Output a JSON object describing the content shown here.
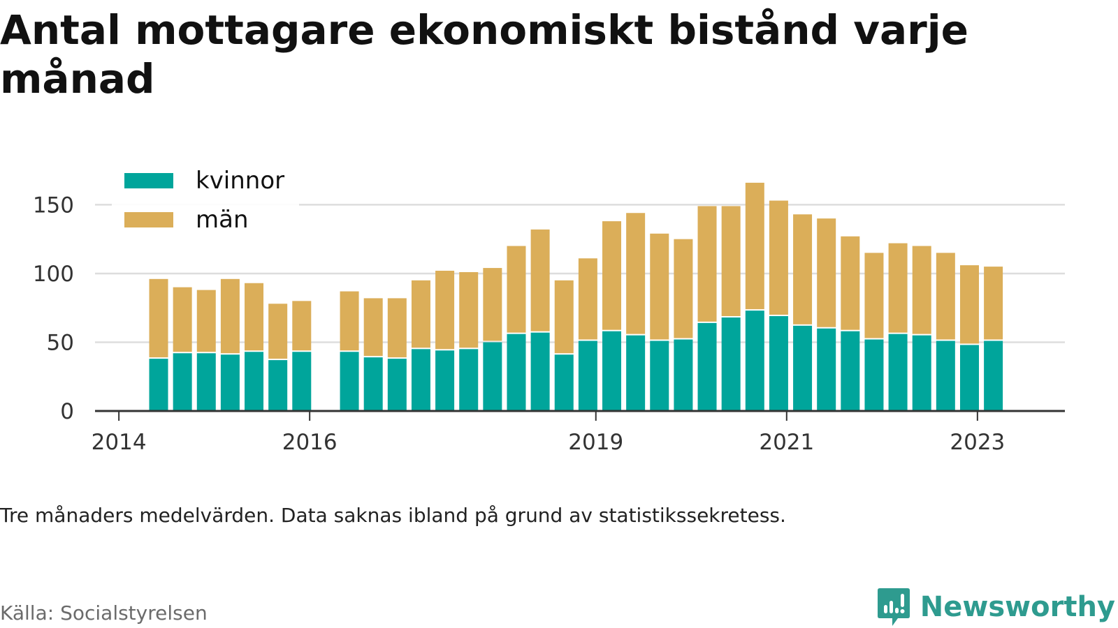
{
  "title": "Antal mottagare ekonomiskt bistånd varje månad",
  "note": "Tre månaders medelvärden. Data saknas ibland på grund av statistikssekretess.",
  "source": "Källa: Socialstyrelsen",
  "brand": {
    "name": "Newsworthy",
    "icon": "newsworthy-logo-icon",
    "color": "#2e9b8f"
  },
  "chart_data": {
    "type": "bar",
    "stacked": true,
    "x": [
      "2014-06",
      "2014-09",
      "2014-12",
      "2015-03",
      "2015-06",
      "2015-09",
      "2015-12",
      "2016-06",
      "2016-09",
      "2016-12",
      "2017-03",
      "2017-06",
      "2017-09",
      "2017-12",
      "2018-03",
      "2018-06",
      "2018-09",
      "2018-12",
      "2019-03",
      "2019-06",
      "2019-09",
      "2019-12",
      "2020-03",
      "2020-06",
      "2020-09",
      "2020-12",
      "2021-03",
      "2021-06",
      "2021-09",
      "2021-12",
      "2022-03",
      "2022-06",
      "2022-09",
      "2022-12",
      "2023-03"
    ],
    "series": [
      {
        "name": "kvinnor",
        "color": "#00a59b",
        "values": [
          38,
          42,
          42,
          41,
          43,
          37,
          43,
          43,
          39,
          38,
          45,
          44,
          45,
          50,
          56,
          57,
          41,
          51,
          58,
          55,
          51,
          52,
          64,
          68,
          73,
          69,
          62,
          60,
          58,
          52,
          56,
          55,
          51,
          48,
          51
        ]
      },
      {
        "name": "män",
        "color": "#dbae59",
        "values": [
          58,
          48,
          46,
          55,
          50,
          41,
          37,
          44,
          43,
          44,
          50,
          58,
          56,
          54,
          64,
          75,
          54,
          60,
          80,
          89,
          78,
          73,
          85,
          81,
          93,
          84,
          81,
          80,
          69,
          63,
          66,
          65,
          64,
          58,
          54
        ]
      }
    ],
    "xticks": [
      "2014",
      "2016",
      "2019",
      "2021",
      "2023"
    ],
    "xtick_dates": [
      "2014-01",
      "2016-01",
      "2019-01",
      "2021-01",
      "2023-01"
    ],
    "x_range": [
      "2013-10",
      "2023-12"
    ],
    "yticks": [
      0,
      50,
      100,
      150
    ],
    "ylim": [
      0,
      170
    ],
    "grid": true,
    "legend_position": "top-left",
    "grid_color": "#dddddd",
    "axis_color": "#333333"
  }
}
